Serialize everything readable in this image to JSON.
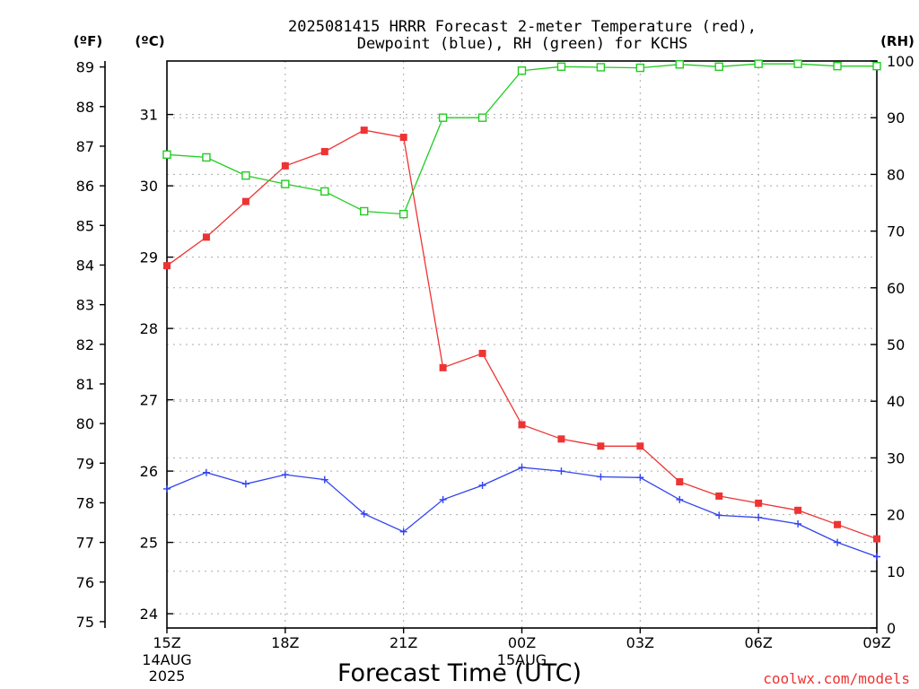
{
  "chart_data": {
    "type": "line",
    "title_line1": "2025081415 HRRR Forecast 2-meter Temperature (red),",
    "title_line2": "Dewpoint (blue), RH (green) for KCHS",
    "xlabel": "Forecast Time (UTC)",
    "left_outer_axis_label": "(ºF)",
    "left_inner_axis_label": "(ºC)",
    "right_axis_label": "(RH)",
    "watermark": "coolwx.com/models",
    "x_ticks": [
      {
        "label": "15Z",
        "sub1": "14AUG",
        "sub2": "2025",
        "x": 0
      },
      {
        "label": "18Z",
        "sub1": "",
        "sub2": "",
        "x": 3
      },
      {
        "label": "21Z",
        "sub1": "",
        "sub2": "",
        "x": 6
      },
      {
        "label": "00Z",
        "sub1": "15AUG",
        "sub2": "",
        "x": 9
      },
      {
        "label": "03Z",
        "sub1": "",
        "sub2": "",
        "x": 12
      },
      {
        "label": "06Z",
        "sub1": "",
        "sub2": "",
        "x": 15
      },
      {
        "label": "09Z",
        "sub1": "",
        "sub2": "",
        "x": 18
      }
    ],
    "x_range_hours": [
      0,
      18
    ],
    "celsius_ticks": [
      "24",
      "25",
      "26",
      "27",
      "28",
      "29",
      "30",
      "31"
    ],
    "celsius_range": [
      23.8,
      31.75
    ],
    "fahrenheit_ticks": [
      "75",
      "76",
      "77",
      "78",
      "79",
      "80",
      "81",
      "82",
      "83",
      "84",
      "85",
      "86",
      "87",
      "88",
      "89"
    ],
    "rh_ticks": [
      "0",
      "10",
      "20",
      "30",
      "40",
      "50",
      "60",
      "70",
      "80",
      "90",
      "100"
    ],
    "rh_range": [
      0,
      100
    ],
    "series": [
      {
        "name": "2-meter Temperature",
        "color": "#ee3333",
        "marker": "filled-square",
        "axis": "celsius",
        "values": [
          28.88,
          29.28,
          29.78,
          30.28,
          30.48,
          30.78,
          30.68,
          27.45,
          27.65,
          26.65,
          26.45,
          26.35,
          26.35,
          25.85,
          25.65,
          25.55,
          25.45,
          25.25,
          25.05
        ]
      },
      {
        "name": "Dewpoint",
        "color": "#3344ee",
        "marker": "plus",
        "axis": "celsius",
        "values": [
          25.75,
          25.98,
          25.82,
          25.95,
          25.88,
          25.4,
          25.15,
          25.6,
          25.8,
          26.05,
          26.0,
          25.92,
          25.91,
          25.6,
          25.38,
          25.35,
          25.26,
          25.0,
          24.8
        ]
      },
      {
        "name": "RH",
        "color": "#22cc22",
        "marker": "open-square",
        "axis": "rh",
        "values": [
          83.5,
          83.0,
          79.8,
          78.3,
          77.0,
          73.5,
          73.0,
          90.0,
          90.0,
          98.3,
          99.0,
          98.9,
          98.8,
          99.4,
          99.0,
          99.5,
          99.5,
          99.1,
          99.1
        ]
      }
    ],
    "grid": true
  }
}
